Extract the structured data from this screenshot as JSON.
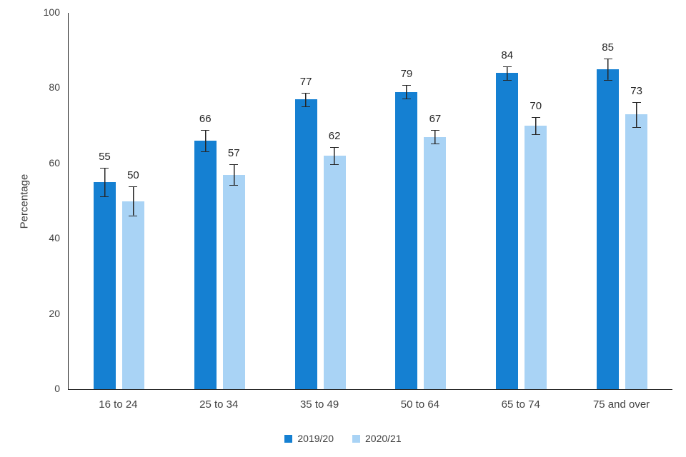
{
  "chart_data": {
    "type": "bar",
    "title": "",
    "xlabel": "",
    "ylabel": "Percentage",
    "ylim": [
      0,
      100
    ],
    "yticks": [
      0,
      20,
      40,
      60,
      80,
      100
    ],
    "grid": false,
    "legend_position": "bottom",
    "categories": [
      "16 to 24",
      "25 to 34",
      "35 to 49",
      "50 to 64",
      "65 to 74",
      "75 and over"
    ],
    "series": [
      {
        "name": "2019/20",
        "color": "#1580d2",
        "values": [
          55,
          66,
          77,
          79,
          84,
          85
        ],
        "errors": [
          4,
          3,
          2,
          2,
          2,
          3
        ]
      },
      {
        "name": "2020/21",
        "color": "#a9d3f5",
        "values": [
          50,
          57,
          62,
          67,
          70,
          73
        ],
        "errors": [
          4,
          3,
          2.5,
          2,
          2.5,
          3.5
        ]
      }
    ]
  }
}
